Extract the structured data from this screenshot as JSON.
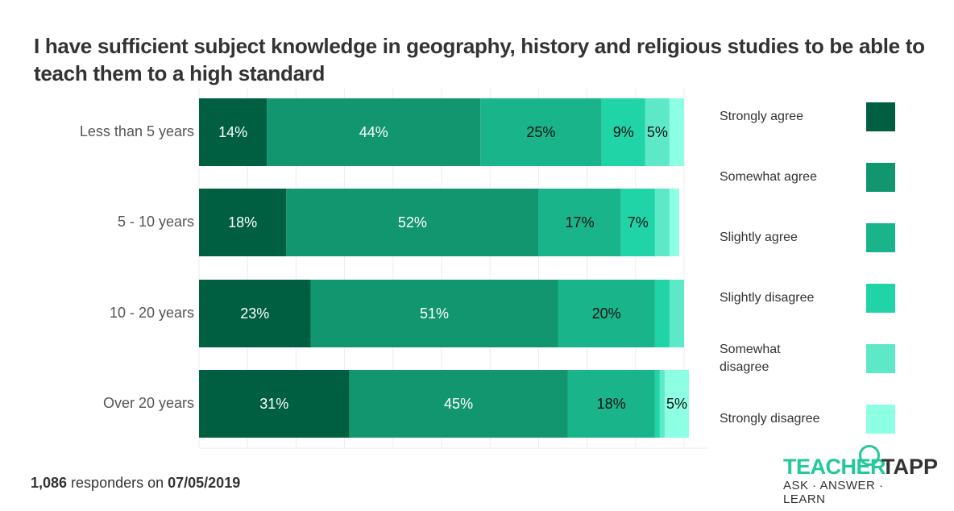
{
  "chart_data": {
    "type": "bar",
    "orientation": "horizontal",
    "stacked": true,
    "title": "I have sufficient subject knowledge in geography, history and religious studies to be able to teach them to a high standard",
    "categories": [
      "Less than 5 years",
      "5 - 10 years",
      "10 - 20 years",
      "Over 20 years"
    ],
    "xlim": [
      0,
      100
    ],
    "grid": true,
    "legend_placement": "right",
    "series": [
      {
        "name": "Strongly agree",
        "color": "#005e41",
        "values": [
          14,
          18,
          23,
          31
        ],
        "labels": [
          "14%",
          "18%",
          "23%",
          "31%"
        ],
        "label_color": "#ffffff"
      },
      {
        "name": "Somewhat agree",
        "color": "#12966f",
        "values": [
          44,
          52,
          51,
          45
        ],
        "labels": [
          "44%",
          "52%",
          "51%",
          "45%"
        ],
        "label_color": "#ffffff"
      },
      {
        "name": "Slightly agree",
        "color": "#1ab48a",
        "values": [
          25,
          17,
          20,
          18
        ],
        "labels": [
          "25%",
          "17%",
          "20%",
          "18%"
        ],
        "label_color": "#111111"
      },
      {
        "name": "Slightly disagree",
        "color": "#20d4a8",
        "values": [
          9,
          7,
          3,
          1
        ],
        "labels": [
          "9%",
          "7%",
          "",
          ""
        ],
        "label_color": "#111111"
      },
      {
        "name": "Somewhat\ndisagree",
        "color": "#5de8c8",
        "values": [
          5,
          3,
          3,
          1
        ],
        "labels": [
          "5%",
          "",
          "",
          ""
        ],
        "label_color": "#111111"
      },
      {
        "name": "Strongly disagree",
        "color": "#8dffe3",
        "values": [
          3,
          2,
          0,
          5
        ],
        "labels": [
          "",
          "",
          "",
          "5%"
        ],
        "label_color": "#111111"
      }
    ]
  },
  "footer": {
    "count": "1,086",
    "text": " responders on ",
    "date": "07/05/2019"
  },
  "logo": {
    "part1": "TEACHER",
    "part2": "TAPP",
    "tagline": "ASK · ANSWER · LEARN"
  }
}
